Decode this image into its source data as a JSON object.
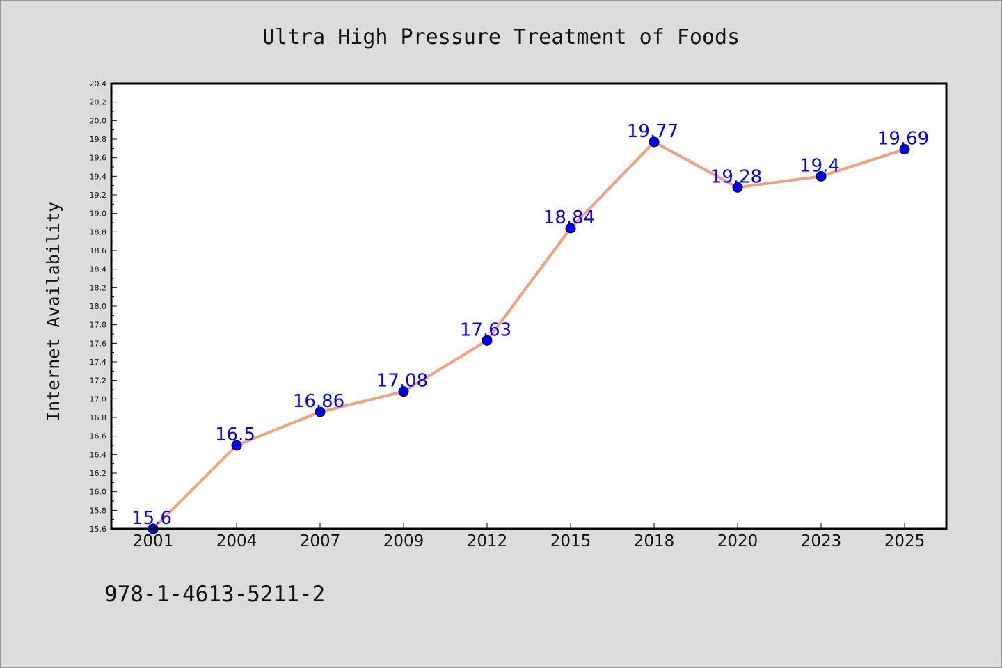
{
  "chart_data": {
    "type": "line",
    "title": "Ultra High Pressure Treatment of Foods",
    "xlabel": "",
    "ylabel": "Internet Availability",
    "categories": [
      "2001",
      "2004",
      "2007",
      "2009",
      "2012",
      "2015",
      "2018",
      "2020",
      "2023",
      "2025"
    ],
    "series": [
      {
        "values": [
          15.6,
          16.5,
          16.86,
          17.08,
          17.63,
          18.84,
          19.77,
          19.28,
          19.4,
          19.69
        ],
        "line_color": "#f4a07e",
        "marker_color": "#0000ee"
      }
    ],
    "data_labels": [
      "15.6",
      "16.5",
      "16.86",
      "17.08",
      "17.63",
      "18.84",
      "19.77",
      "19.28",
      "19.4",
      "19.69"
    ],
    "ylim": [
      15.6,
      20.4
    ],
    "yticks": [
      "15.6",
      "15.8",
      "16.0",
      "16.2",
      "16.4",
      "16.6",
      "16.8",
      "17.0",
      "17.2",
      "17.4",
      "17.6",
      "17.8",
      "18.0",
      "18.2",
      "18.4",
      "18.6",
      "18.8",
      "19.0",
      "19.2",
      "19.4",
      "19.6",
      "19.8",
      "20.0",
      "20.2",
      "20.4"
    ],
    "grid": false,
    "legend": "none"
  },
  "footer_text": "978-1-4613-5211-2",
  "colors": {
    "background": "#dcdcdc",
    "plot_background": "#ffffff",
    "label_color": "#0000ff"
  }
}
